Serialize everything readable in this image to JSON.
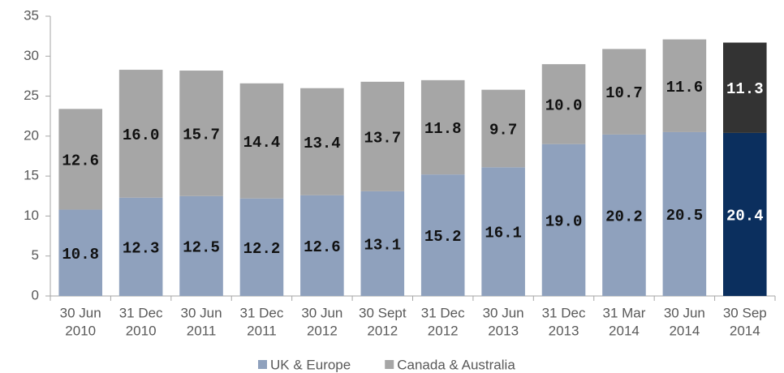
{
  "chart_data": {
    "type": "stacked_bar",
    "categories": [
      [
        "30 Jun",
        "2010"
      ],
      [
        "31 Dec",
        "2010"
      ],
      [
        "30 Jun",
        "2011"
      ],
      [
        "31 Dec",
        "2011"
      ],
      [
        "30 Jun",
        "2012"
      ],
      [
        "30 Sept",
        "2012"
      ],
      [
        "31 Dec",
        "2012"
      ],
      [
        "30 Jun",
        "2013"
      ],
      [
        "31 Dec",
        "2013"
      ],
      [
        "31 Mar",
        "2014"
      ],
      [
        "30 Jun",
        "2014"
      ],
      [
        "30 Sep",
        "2014"
      ]
    ],
    "series": [
      {
        "name": "UK & Europe",
        "color": "#8fa1bd",
        "highlight_color": "#0b2f5e",
        "values": [
          10.8,
          12.3,
          12.5,
          12.2,
          12.6,
          13.1,
          15.2,
          16.1,
          19.0,
          20.2,
          20.5,
          20.4
        ],
        "value_labels": [
          "10.8",
          "12.3",
          "12.5",
          "12.2",
          "12.6",
          "13.1",
          "15.2",
          "16.1",
          "19.0",
          "20.2",
          "20.5",
          "20.4"
        ]
      },
      {
        "name": "Canada & Australia",
        "color": "#a6a6a6",
        "highlight_color": "#333333",
        "values": [
          12.6,
          16.0,
          15.7,
          14.4,
          13.4,
          13.7,
          11.8,
          9.7,
          10.0,
          10.7,
          11.6,
          11.3
        ],
        "value_labels": [
          "12.6",
          "16.0",
          "15.7",
          "14.4",
          "13.4",
          "13.7",
          "11.8",
          "9.7",
          "10.0",
          "10.7",
          "11.6",
          "11.3"
        ]
      }
    ],
    "highlight_category": 11,
    "ylim": [
      0,
      35
    ],
    "yticks": [
      0,
      5,
      10,
      15,
      20,
      25,
      30,
      35
    ],
    "grid": false,
    "legend": "bottom"
  }
}
